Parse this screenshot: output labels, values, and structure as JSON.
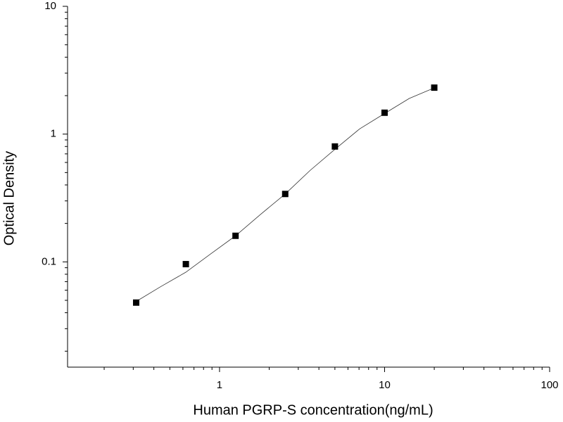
{
  "chart_data": {
    "type": "scatter",
    "x_label": "Human PGRP-S concentration(ng/mL)",
    "y_label": "Optical Density",
    "x": [
      0.3125,
      0.625,
      1.25,
      2.5,
      5,
      10,
      20
    ],
    "values": [
      0.048,
      0.096,
      0.16,
      0.34,
      0.8,
      1.47,
      2.31
    ],
    "color": "#000000",
    "curve": {
      "x": [
        0.3125,
        0.44,
        0.625,
        0.88,
        1.25,
        1.77,
        2.5,
        3.54,
        5,
        7.07,
        10,
        14.1,
        20
      ],
      "values": [
        0.049,
        0.064,
        0.083,
        0.115,
        0.16,
        0.235,
        0.34,
        0.52,
        0.76,
        1.1,
        1.45,
        1.9,
        2.3
      ]
    },
    "xlog": true,
    "ylog": true,
    "xlim": [
      0.12,
      100
    ],
    "ylim": [
      0.015,
      10
    ],
    "xticks": [
      1,
      10,
      100
    ],
    "yticks": [
      0.1,
      1,
      10
    ],
    "xminorticks": [
      0.2,
      0.3,
      0.4,
      0.5,
      0.6,
      0.7,
      0.8,
      0.9,
      2,
      3,
      4,
      5,
      6,
      7,
      8,
      9,
      20,
      30,
      40,
      50,
      60,
      70,
      80,
      90
    ],
    "yminorticks": [
      0.02,
      0.03,
      0.04,
      0.05,
      0.06,
      0.07,
      0.08,
      0.09,
      0.2,
      0.3,
      0.4,
      0.5,
      0.6,
      0.7,
      0.8,
      0.9,
      2,
      3,
      4,
      5,
      6,
      7,
      8,
      9
    ],
    "grid": false
  }
}
